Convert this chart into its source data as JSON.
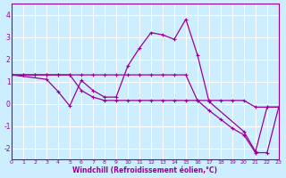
{
  "xlabel": "Windchill (Refroidissement éolien,°C)",
  "bg_color": "#cceeff",
  "grid_color": "#ffffff",
  "line_color": "#990099",
  "xlim": [
    0,
    23
  ],
  "ylim": [
    -2.5,
    4.5
  ],
  "xticks": [
    0,
    1,
    2,
    3,
    4,
    5,
    6,
    7,
    8,
    9,
    10,
    11,
    12,
    13,
    14,
    15,
    16,
    17,
    18,
    19,
    20,
    21,
    22,
    23
  ],
  "yticks": [
    -2,
    -1,
    0,
    1,
    2,
    3,
    4
  ],
  "curve1_x": [
    0,
    1,
    2,
    3,
    4,
    5,
    6,
    7,
    8,
    9,
    10,
    11,
    12,
    13,
    14,
    15,
    16,
    17,
    18,
    19,
    20,
    21,
    22,
    23
  ],
  "curve1_y": [
    1.3,
    1.3,
    1.3,
    1.3,
    1.3,
    1.3,
    1.3,
    1.3,
    1.3,
    1.3,
    1.3,
    1.3,
    1.3,
    1.3,
    1.3,
    1.3,
    0.15,
    0.15,
    0.15,
    0.15,
    0.15,
    -0.15,
    -0.15,
    -0.15
  ],
  "curve2_x": [
    0,
    3,
    4,
    5,
    6,
    7,
    8,
    9,
    10,
    11,
    12,
    13,
    14,
    15,
    16,
    17,
    20,
    21,
    22,
    23
  ],
  "curve2_y": [
    1.3,
    1.1,
    0.55,
    -0.1,
    1.05,
    0.6,
    0.3,
    0.3,
    1.7,
    2.5,
    3.2,
    3.1,
    2.9,
    3.8,
    2.2,
    0.1,
    -1.25,
    -2.15,
    -0.15,
    -0.15
  ],
  "curve3_x": [
    0,
    1,
    2,
    3,
    4,
    5,
    6,
    7,
    8,
    9,
    10,
    11,
    12,
    13,
    14,
    15,
    16,
    17,
    18,
    19,
    20,
    21,
    22,
    23
  ],
  "curve3_y": [
    1.3,
    1.3,
    1.3,
    1.3,
    1.3,
    1.3,
    0.6,
    0.3,
    0.15,
    0.15,
    0.15,
    0.15,
    0.15,
    0.15,
    0.15,
    0.15,
    0.15,
    -0.3,
    -0.7,
    -1.1,
    -1.4,
    -2.2,
    -2.2,
    -0.15
  ]
}
